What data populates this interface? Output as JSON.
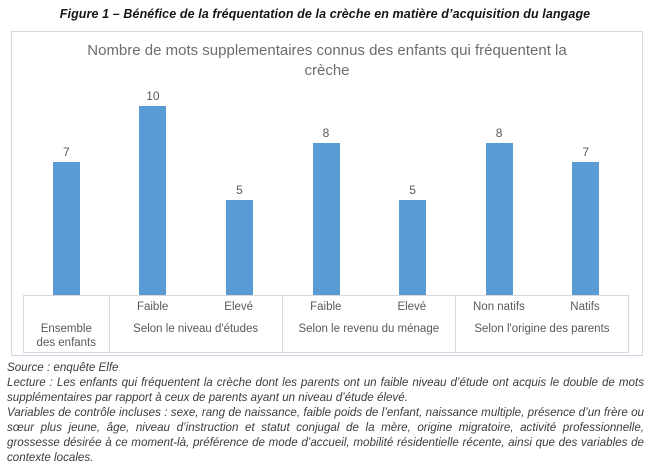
{
  "figure_title": "Figure 1 – Bénéfice de la fréquentation de la crèche en matière d’acquisition du langage",
  "chart_data": {
    "type": "bar",
    "title": "Nombre de mots supplementaires connus des enfants qui fréquentent la crèche",
    "ylim": [
      0,
      10
    ],
    "grid": false,
    "legend": "none",
    "bar_color": "#5B9BD5",
    "label_color": "#595959",
    "groups": [
      {
        "label": "Ensemble des enfants",
        "bars": [
          {
            "sublabel": "",
            "value": 7
          }
        ]
      },
      {
        "label": "Selon le niveau d'études",
        "bars": [
          {
            "sublabel": "Faible",
            "value": 10
          },
          {
            "sublabel": "Elevé",
            "value": 5
          }
        ]
      },
      {
        "label": "Selon le revenu du ménage",
        "bars": [
          {
            "sublabel": "Faible",
            "value": 8
          },
          {
            "sublabel": "Elevé",
            "value": 5
          }
        ]
      },
      {
        "label": "Selon l'origine des parents",
        "bars": [
          {
            "sublabel": "Non natifs",
            "value": 8
          },
          {
            "sublabel": "Natifs",
            "value": 7
          }
        ]
      }
    ],
    "categories": [
      "Ensemble des enfants",
      "Faible (niveau d'études)",
      "Elevé (niveau d'études)",
      "Faible (revenu du ménage)",
      "Elevé (revenu du ménage)",
      "Non natifs",
      "Natifs"
    ],
    "values": [
      7,
      10,
      5,
      8,
      5,
      8,
      7
    ]
  },
  "footer": {
    "source": "Source : enquête Elfe",
    "lecture": "Lecture : Les enfants qui fréquentent la crèche dont les parents ont un faible niveau d’étude ont acquis le double de mots supplémentaires par rapport à ceux de parents ayant un niveau d’étude élevé.",
    "variables": "Variables de contrôle incluses : sexe, rang de naissance, faible poids de l’enfant, naissance multiple, présence d’un frère ou sœur plus jeune, âge, niveau d’instruction et statut conjugal de la mère, origine migratoire, activité professionnelle, grossesse désirée à ce moment-là, préférence de mode d’accueil, mobilité résidentielle récente, ainsi que des variables de contexte locales."
  }
}
